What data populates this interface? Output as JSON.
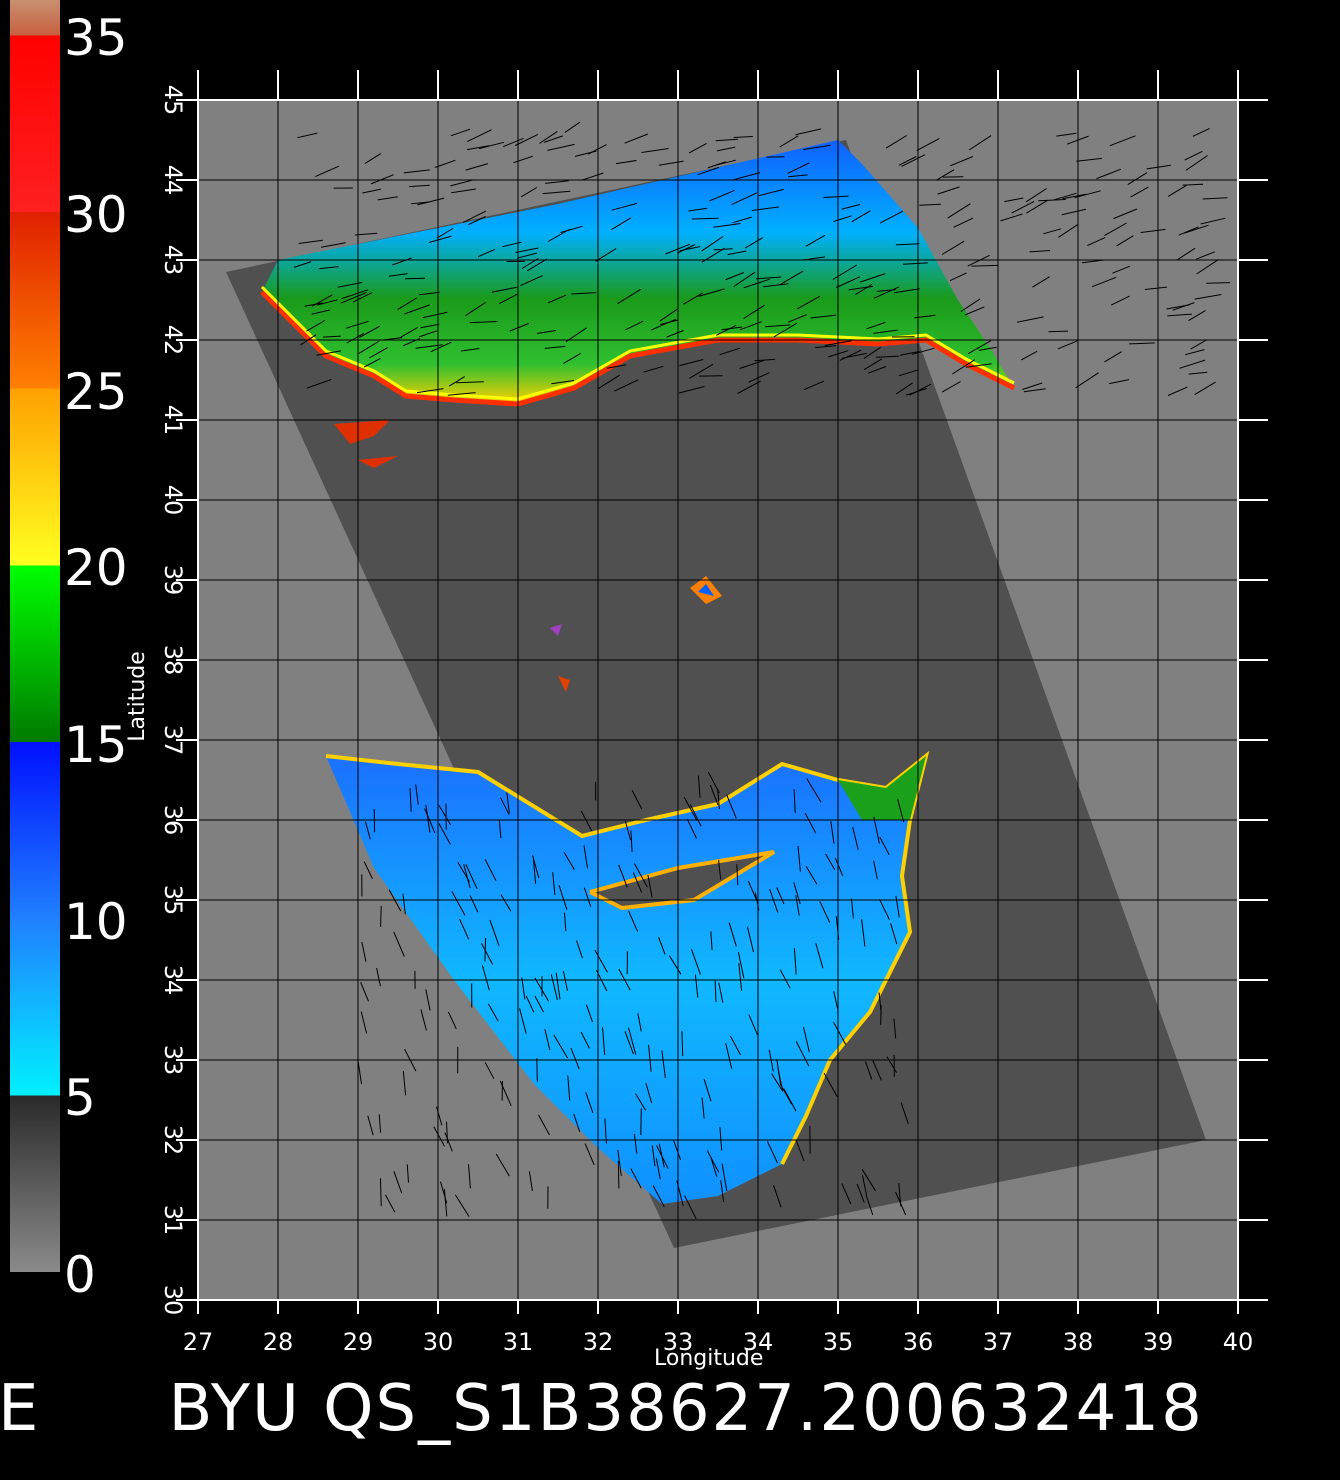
{
  "colorbar": {
    "ticks": [
      "35",
      "30",
      "25",
      "20",
      "15",
      "10",
      "5",
      "0"
    ],
    "tick_values": [
      35,
      30,
      25,
      20,
      15,
      10,
      5,
      0
    ],
    "range": [
      0,
      36
    ],
    "stops": [
      {
        "from": 0,
        "to": 5,
        "colors": [
          "#8a8a8a",
          "#2a2a2a"
        ]
      },
      {
        "from": 5,
        "to": 10,
        "colors": [
          "#00f0ff",
          "#2080ff"
        ]
      },
      {
        "from": 10,
        "to": 15,
        "colors": [
          "#2080ff",
          "#0010ff"
        ]
      },
      {
        "from": 15,
        "to": 20,
        "colors": [
          "#007a00",
          "#00ff00"
        ]
      },
      {
        "from": 20,
        "to": 25,
        "colors": [
          "#ffff20",
          "#ffa000"
        ]
      },
      {
        "from": 25,
        "to": 30,
        "colors": [
          "#ff8000",
          "#e02000"
        ]
      },
      {
        "from": 30,
        "to": 35,
        "colors": [
          "#ff2020",
          "#ff0000"
        ]
      },
      {
        "from": 35,
        "to": 36,
        "colors": [
          "#c86040",
          "#c89070"
        ]
      }
    ]
  },
  "map": {
    "xlabel": "Longitude",
    "ylabel": "Latitude",
    "lon_range": [
      27,
      40
    ],
    "lat_range": [
      30,
      45
    ],
    "x_ticks": [
      "27",
      "28",
      "29",
      "30",
      "31",
      "32",
      "33",
      "34",
      "35",
      "36",
      "37",
      "38",
      "39",
      "40"
    ],
    "y_ticks": [
      "30",
      "31",
      "32",
      "33",
      "34",
      "35",
      "36",
      "37",
      "38",
      "39",
      "40",
      "41",
      "42",
      "43",
      "44",
      "45"
    ],
    "colors": {
      "background": "#808080",
      "swath": "#505050",
      "grid": "#000000",
      "axis": "#ffffff"
    }
  },
  "footer": {
    "lead": "E",
    "title": "BYU QS_S1B38627.200632418"
  }
}
